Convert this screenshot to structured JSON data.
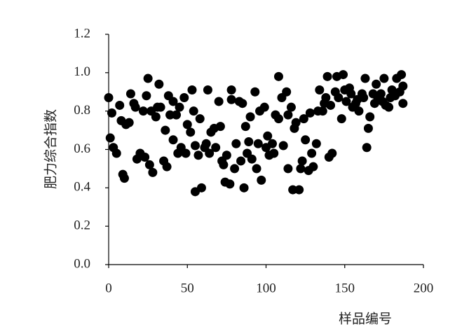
{
  "chart_data": {
    "type": "scatter",
    "x_label": "样品编号",
    "y_label": "肥力综合指数",
    "color": "#000000",
    "xlim": [
      0,
      200
    ],
    "xticks": [
      0,
      50,
      100,
      150,
      200
    ],
    "ylim": [
      0,
      1.2
    ],
    "yticks": [
      {
        "value": 0,
        "label": "0.0"
      },
      0.2,
      0.4,
      0.6,
      0.8,
      {
        "value": 1,
        "label": "1.0"
      },
      1.2
    ],
    "x": [
      0,
      1,
      2,
      3,
      5,
      7,
      8,
      9,
      10,
      11,
      13,
      14,
      16,
      17,
      18,
      20,
      22,
      23,
      24,
      25,
      26,
      27,
      28,
      30,
      31,
      32,
      33,
      35,
      36,
      37,
      38,
      39,
      41,
      41,
      43,
      44,
      45,
      46,
      48,
      49,
      50,
      52,
      53,
      54,
      55,
      55,
      57,
      58,
      59,
      61,
      62,
      63,
      64,
      65,
      67,
      68,
      70,
      71,
      72,
      73,
      74,
      75,
      77,
      78,
      78,
      80,
      81,
      83,
      84,
      85,
      86,
      87,
      88,
      89,
      90,
      91,
      93,
      94,
      95,
      96,
      97,
      99,
      100,
      101,
      102,
      104,
      105,
      106,
      108,
      108,
      110,
      111,
      113,
      114,
      114,
      116,
      117,
      118,
      119,
      121,
      122,
      123,
      124,
      125,
      127,
      128,
      129,
      130,
      132,
      133,
      134,
      136,
      137,
      138,
      139,
      140,
      141,
      142,
      144,
      145,
      146,
      148,
      149,
      150,
      151,
      153,
      154,
      155,
      157,
      158,
      159,
      161,
      162,
      163,
      164,
      165,
      166,
      168,
      169,
      170,
      171,
      173,
      174,
      175,
      176,
      178,
      179,
      180,
      182,
      183,
      185,
      186,
      187,
      187
    ],
    "values": [
      0.87,
      0.66,
      0.79,
      0.61,
      0.58,
      0.83,
      0.75,
      0.47,
      0.45,
      0.73,
      0.74,
      0.89,
      0.84,
      0.82,
      0.55,
      0.58,
      0.8,
      0.56,
      0.88,
      0.97,
      0.52,
      0.8,
      0.48,
      0.77,
      0.82,
      0.94,
      0.82,
      0.54,
      0.7,
      0.51,
      0.88,
      0.78,
      0.85,
      0.65,
      0.78,
      0.58,
      0.82,
      0.61,
      0.87,
      0.58,
      0.73,
      0.69,
      0.91,
      0.8,
      0.38,
      0.62,
      0.57,
      0.76,
      0.4,
      0.61,
      0.63,
      0.91,
      0.58,
      0.69,
      0.71,
      0.61,
      0.85,
      0.72,
      0.54,
      0.52,
      0.43,
      0.57,
      0.42,
      0.86,
      0.91,
      0.5,
      0.63,
      0.85,
      0.54,
      0.84,
      0.4,
      0.72,
      0.58,
      0.64,
      0.77,
      0.55,
      0.9,
      0.5,
      0.63,
      0.8,
      0.44,
      0.82,
      0.61,
      0.67,
      0.57,
      0.63,
      0.58,
      0.78,
      0.98,
      0.76,
      0.87,
      0.62,
      0.9,
      0.78,
      0.5,
      0.82,
      0.39,
      0.71,
      0.74,
      0.39,
      0.5,
      0.54,
      0.76,
      0.65,
      0.49,
      0.79,
      0.58,
      0.51,
      0.63,
      0.8,
      0.91,
      0.8,
      0.84,
      0.87,
      0.98,
      0.56,
      0.83,
      0.58,
      0.9,
      0.98,
      0.87,
      0.76,
      0.99,
      0.91,
      0.85,
      0.92,
      0.89,
      0.82,
      0.84,
      0.86,
      0.8,
      0.89,
      0.87,
      0.97,
      0.61,
      0.71,
      0.77,
      0.89,
      0.84,
      0.94,
      0.87,
      0.89,
      0.85,
      0.97,
      0.83,
      0.82,
      0.87,
      0.91,
      0.88,
      0.97,
      0.9,
      0.99,
      0.84,
      0.93
    ]
  }
}
